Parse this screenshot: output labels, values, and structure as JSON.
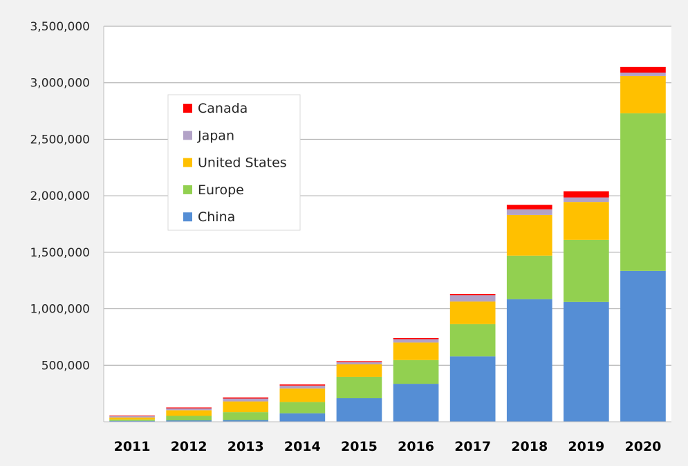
{
  "chart_data": {
    "type": "bar",
    "stacked": true,
    "categories": [
      "2011",
      "2012",
      "2013",
      "2014",
      "2015",
      "2016",
      "2017",
      "2018",
      "2019",
      "2020"
    ],
    "series": [
      {
        "name": "China",
        "color": "#558ed5",
        "values": [
          8000,
          12000,
          15000,
          75000,
          208000,
          336000,
          579000,
          1085000,
          1060000,
          1335000
        ]
      },
      {
        "name": "Europe",
        "color": "#92d050",
        "values": [
          12000,
          40000,
          70000,
          100000,
          190000,
          210000,
          285000,
          385000,
          550000,
          1395000
        ]
      },
      {
        "name": "United States",
        "color": "#ffc000",
        "values": [
          18000,
          50000,
          95000,
          120000,
          110000,
          155000,
          200000,
          360000,
          335000,
          330000
        ]
      },
      {
        "name": "Japan",
        "color": "#b2a2c7",
        "values": [
          12000,
          17000,
          25000,
          25000,
          20000,
          30000,
          55000,
          50000,
          40000,
          30000
        ]
      },
      {
        "name": "Canada",
        "color": "#ff0000",
        "values": [
          5000,
          7000,
          10000,
          10000,
          8000,
          10000,
          12000,
          40000,
          55000,
          50000
        ]
      }
    ],
    "legend_order": [
      "Canada",
      "Japan",
      "United States",
      "Europe",
      "China"
    ],
    "legend_position": "top-left",
    "y_ticks": [
      "500,000",
      "1,000,000",
      "1,500,000",
      "2,000,000",
      "2,500,000",
      "3,000,000",
      "3,500,000"
    ],
    "y_tick_values": [
      500000,
      1000000,
      1500000,
      2000000,
      2500000,
      3000000,
      3500000
    ],
    "ylim": [
      0,
      3500000
    ],
    "grid": true,
    "title": "",
    "xlabel": "",
    "ylabel": ""
  }
}
